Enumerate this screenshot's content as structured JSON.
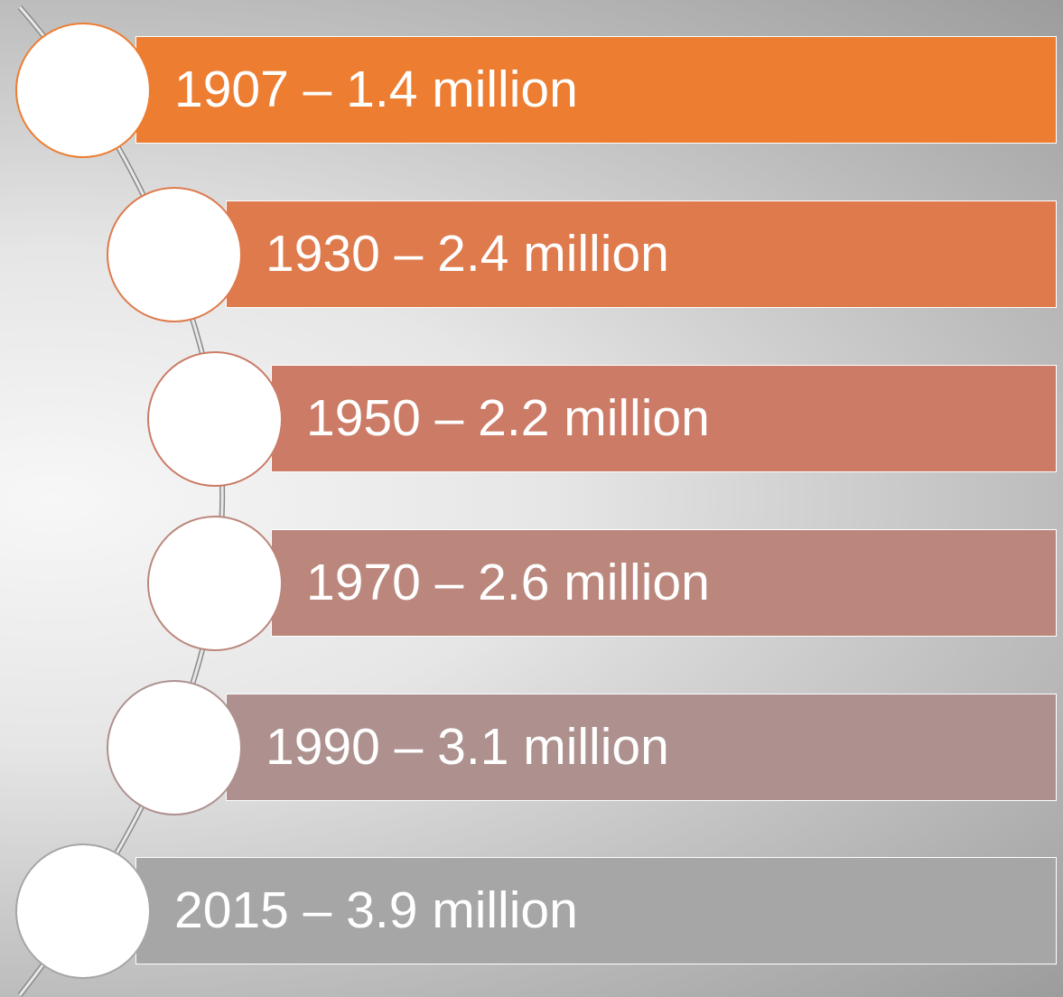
{
  "items": [
    {
      "label": "1907 – 1.4 million"
    },
    {
      "label": "1930 – 2.4 million"
    },
    {
      "label": "1950 – 2.2 million"
    },
    {
      "label": "1970 – 2.6 million"
    },
    {
      "label": "1990 – 3.1 million"
    },
    {
      "label": "2015 – 3.9 million"
    }
  ]
}
